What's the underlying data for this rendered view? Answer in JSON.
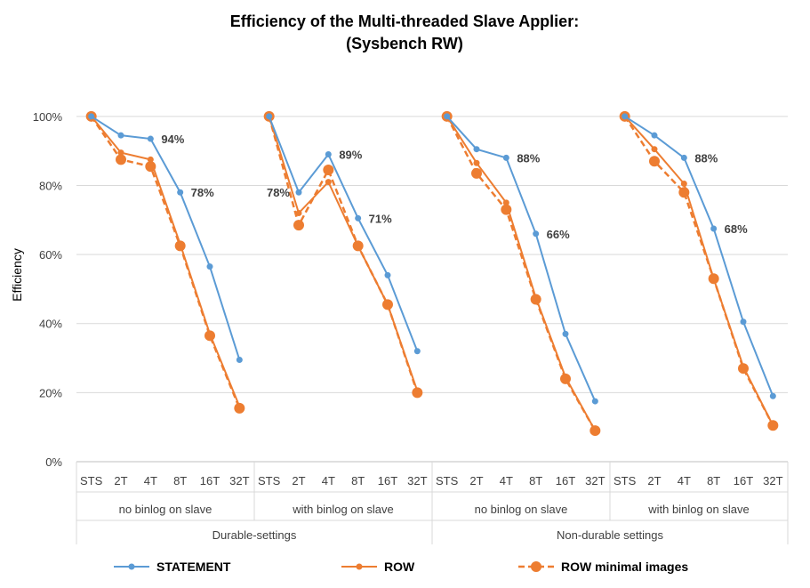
{
  "chart_data": {
    "type": "line",
    "title": "Efficiency of the Multi-threaded Slave Applier:",
    "subtitle": "(Sysbench RW)",
    "ylabel": "Efficiency",
    "ylim": [
      0,
      100
    ],
    "y_ticks": [
      "0%",
      "20%",
      "40%",
      "60%",
      "80%",
      "100%"
    ],
    "y_tick_values": [
      0,
      20,
      40,
      60,
      80,
      100
    ],
    "grid": "horizontal",
    "legend_position": "bottom",
    "categories": [
      "STS",
      "2T",
      "4T",
      "8T",
      "16T",
      "32T"
    ],
    "groups_level1": [
      "no binlog on slave",
      "with binlog on slave",
      "no binlog on slave",
      "with binlog on slave"
    ],
    "groups_level2": [
      "Durable-settings",
      "Non-durable settings"
    ],
    "series": [
      {
        "name": "STATEMENT",
        "color": "#5b9bd5",
        "style": "solid-small-marker",
        "values": [
          [
            100,
            94.5,
            93.5,
            78,
            56.5,
            29.5
          ],
          [
            100,
            78,
            89,
            70.5,
            54,
            32
          ],
          [
            100,
            90.5,
            88,
            66,
            37,
            17.5
          ],
          [
            100,
            94.5,
            88,
            67.5,
            40.5,
            19
          ]
        ]
      },
      {
        "name": "ROW",
        "color": "#ed7d31",
        "style": "solid-small-marker",
        "values": [
          [
            100,
            89.5,
            87.5,
            63,
            37,
            16
          ],
          [
            100,
            72,
            81,
            62.5,
            45.5,
            20.5
          ],
          [
            100,
            86.5,
            75,
            47.5,
            24.5,
            9
          ],
          [
            100,
            90.5,
            80.5,
            53,
            27.5,
            10.5
          ]
        ]
      },
      {
        "name": "ROW minimal images",
        "color": "#ed7d31",
        "style": "dashed-large-marker",
        "values": [
          [
            100,
            87.5,
            85.5,
            62.5,
            36.5,
            15.5
          ],
          [
            100,
            68.5,
            84.5,
            62.5,
            45.5,
            20
          ],
          [
            100,
            83.5,
            73,
            47,
            24,
            9
          ],
          [
            100,
            87,
            78,
            53,
            27,
            10.5
          ]
        ]
      }
    ],
    "annotations": [
      {
        "group": 0,
        "category": "4T",
        "value": 93.5,
        "text": "94%"
      },
      {
        "group": 0,
        "category": "8T",
        "value": 78,
        "text": "78%"
      },
      {
        "group": 1,
        "category": "2T",
        "value": 78,
        "text": "78%"
      },
      {
        "group": 1,
        "category": "4T",
        "value": 89,
        "text": "89%"
      },
      {
        "group": 1,
        "category": "8T",
        "value": 70.5,
        "text": "71%"
      },
      {
        "group": 2,
        "category": "4T",
        "value": 88,
        "text": "88%"
      },
      {
        "group": 2,
        "category": "8T",
        "value": 66,
        "text": "66%"
      },
      {
        "group": 3,
        "category": "4T",
        "value": 88,
        "text": "88%"
      },
      {
        "group": 3,
        "category": "8T",
        "value": 67.5,
        "text": "68%"
      }
    ]
  }
}
